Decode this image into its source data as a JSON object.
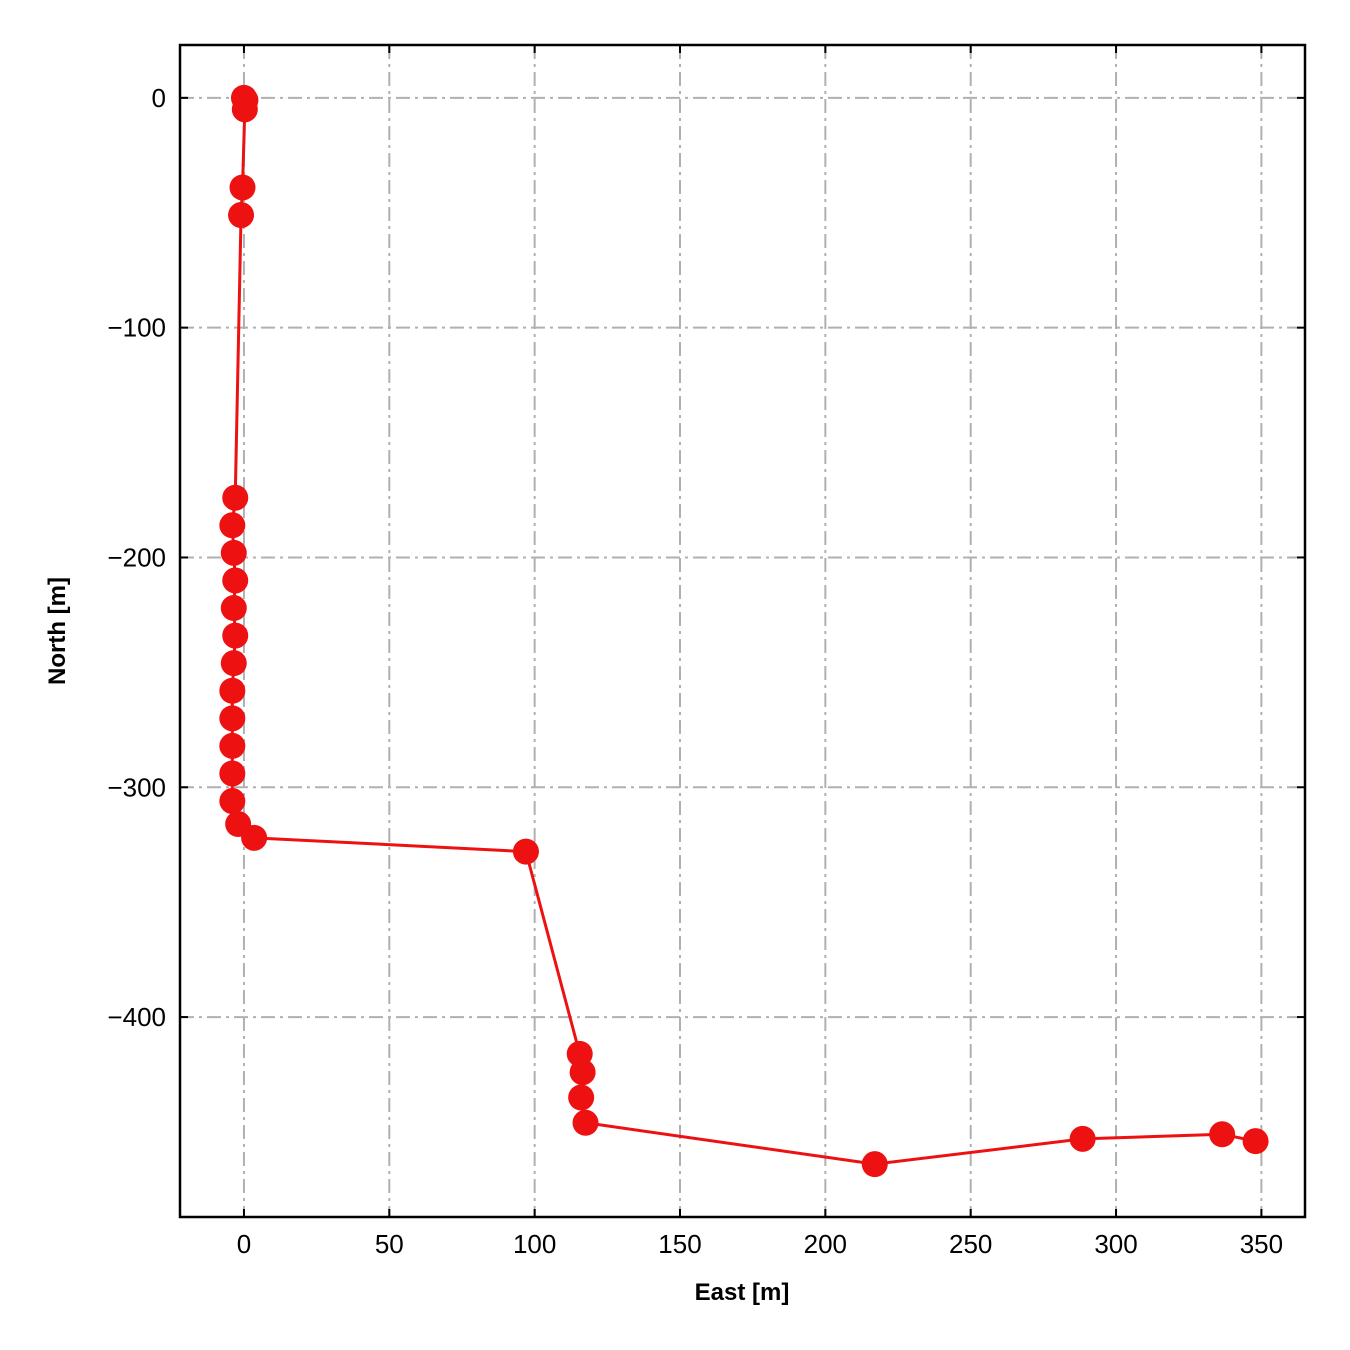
{
  "chart_data": {
    "type": "line",
    "xlabel": "East [m]",
    "ylabel": "North [m]",
    "xlim": [
      -22,
      365
    ],
    "ylim": [
      -487,
      23
    ],
    "xticks": [
      0,
      50,
      100,
      150,
      200,
      250,
      300,
      350
    ],
    "yticks": [
      0,
      -100,
      -200,
      -300,
      -400
    ],
    "xtick_labels": [
      "0",
      "50",
      "100",
      "150",
      "200",
      "250",
      "300",
      "350"
    ],
    "ytick_labels": [
      "0",
      "−100",
      "−200",
      "−300",
      "−400"
    ],
    "grid": true,
    "series": [
      {
        "color": "#ee1111",
        "marker": "circle",
        "points": [
          {
            "x": 0,
            "y": 0
          },
          {
            "x": 0.5,
            "y": -1
          },
          {
            "x": 0.3,
            "y": -5
          },
          {
            "x": -0.5,
            "y": -39
          },
          {
            "x": -1,
            "y": -51
          },
          {
            "x": -3,
            "y": -174
          },
          {
            "x": -4,
            "y": -186
          },
          {
            "x": -3.5,
            "y": -198
          },
          {
            "x": -3,
            "y": -210
          },
          {
            "x": -3.5,
            "y": -222
          },
          {
            "x": -3,
            "y": -234
          },
          {
            "x": -3.5,
            "y": -246
          },
          {
            "x": -4,
            "y": -258
          },
          {
            "x": -4,
            "y": -270
          },
          {
            "x": -4,
            "y": -282
          },
          {
            "x": -4,
            "y": -294
          },
          {
            "x": -4,
            "y": -306
          },
          {
            "x": -2,
            "y": -316
          },
          {
            "x": 3.5,
            "y": -322
          },
          {
            "x": 97,
            "y": -328
          },
          {
            "x": 115.5,
            "y": -416
          },
          {
            "x": 116.5,
            "y": -424
          },
          {
            "x": 116,
            "y": -435
          },
          {
            "x": 117.5,
            "y": -446
          },
          {
            "x": 217,
            "y": -464
          },
          {
            "x": 288.5,
            "y": -453
          },
          {
            "x": 336.5,
            "y": -451
          },
          {
            "x": 348,
            "y": -454
          }
        ]
      }
    ]
  }
}
